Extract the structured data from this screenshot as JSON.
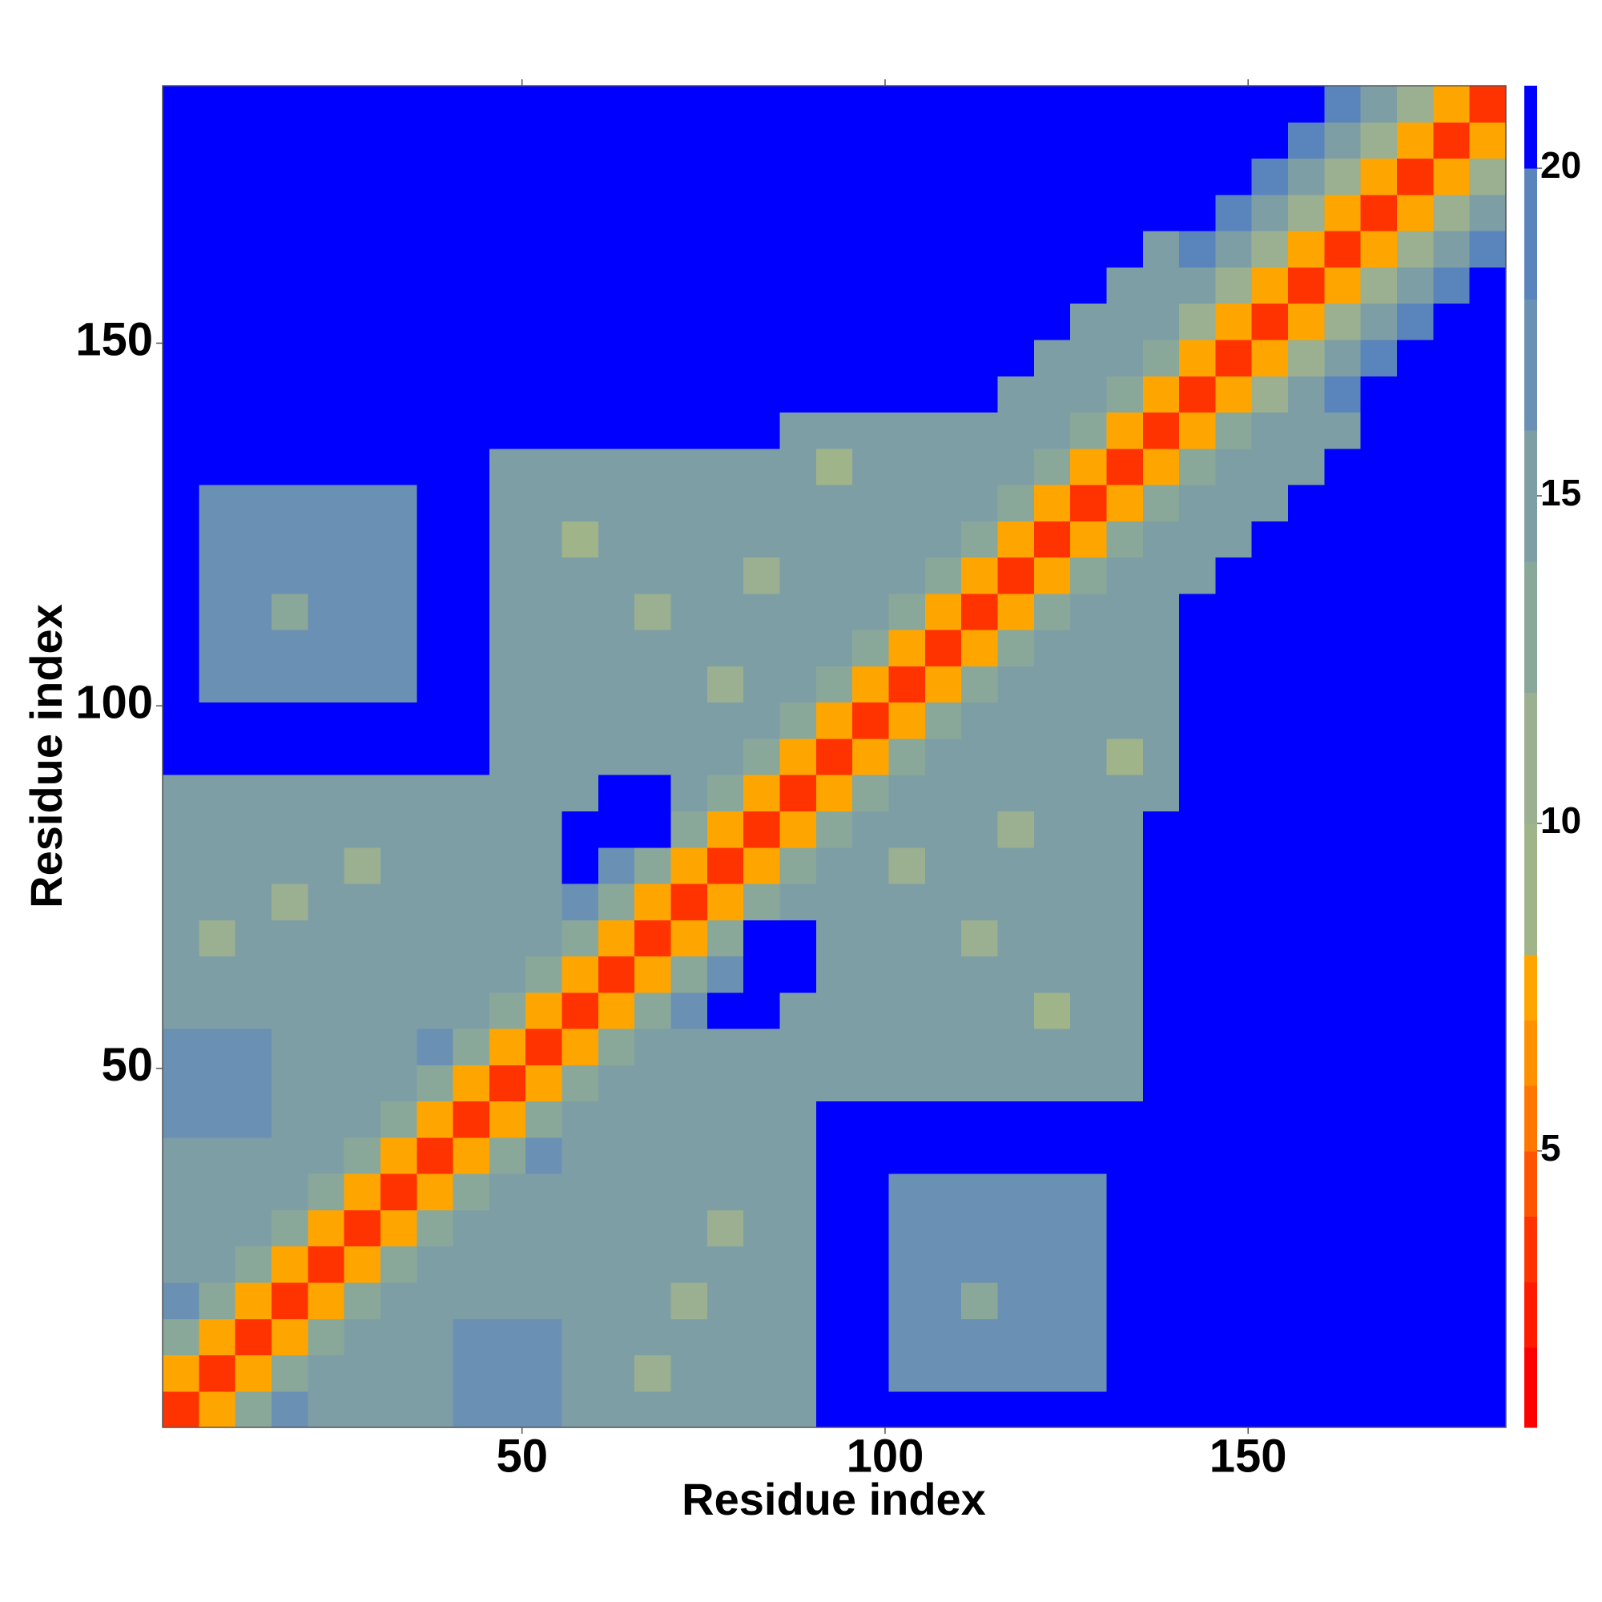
{
  "chart_data": {
    "type": "heatmap",
    "xlabel": "Residue index",
    "ylabel": "Residue index",
    "xlim": [
      0.5,
      185.5
    ],
    "ylim": [
      0.5,
      185.5
    ],
    "xticks": [
      50,
      100,
      150
    ],
    "yticks": [
      50,
      100,
      150
    ],
    "symmetric": true,
    "values": [
      [
        3,
        7,
        12,
        17,
        15,
        15,
        15,
        15,
        16,
        16,
        16,
        14,
        14,
        14,
        14,
        14,
        14,
        14,
        22,
        22,
        22,
        22,
        22,
        22,
        22,
        22,
        22,
        22,
        22,
        22,
        22,
        22,
        22,
        22,
        22,
        22,
        22
      ],
      [
        3,
        7,
        12,
        15,
        15,
        15,
        15,
        16,
        16,
        16,
        14,
        14,
        10,
        14,
        14,
        14,
        14,
        22,
        22,
        17,
        17,
        17,
        17,
        17,
        17,
        22,
        22,
        22,
        22,
        22,
        22,
        22,
        22,
        22,
        22,
        22
      ],
      [
        3,
        7,
        12,
        15,
        15,
        15,
        16,
        16,
        16,
        14,
        14,
        14,
        14,
        14,
        14,
        14,
        22,
        22,
        17,
        17,
        17,
        17,
        17,
        17,
        22,
        22,
        22,
        22,
        22,
        22,
        22,
        22,
        22,
        22,
        22
      ],
      [
        3,
        7,
        12,
        15,
        15,
        15,
        15,
        15,
        14,
        14,
        14,
        10,
        14,
        14,
        14,
        22,
        22,
        17,
        17,
        12,
        17,
        17,
        17,
        22,
        22,
        22,
        22,
        22,
        22,
        22,
        22,
        22,
        22,
        22
      ],
      [
        3,
        7,
        12,
        15,
        15,
        15,
        15,
        14,
        14,
        14,
        14,
        14,
        14,
        14,
        22,
        22,
        17,
        17,
        17,
        17,
        17,
        17,
        22,
        22,
        22,
        22,
        22,
        22,
        22,
        22,
        22,
        22,
        22
      ],
      [
        3,
        7,
        12,
        15,
        15,
        15,
        14,
        14,
        14,
        14,
        11,
        14,
        14,
        22,
        22,
        17,
        17,
        17,
        17,
        17,
        17,
        22,
        22,
        22,
        22,
        22,
        22,
        22,
        22,
        22,
        22,
        22
      ],
      [
        3,
        7,
        12,
        15,
        15,
        14,
        14,
        14,
        14,
        14,
        14,
        14,
        22,
        22,
        17,
        17,
        17,
        17,
        17,
        17,
        22,
        22,
        22,
        22,
        22,
        22,
        22,
        22,
        22,
        22,
        22
      ],
      [
        3,
        7,
        12,
        17,
        14,
        14,
        14,
        14,
        14,
        14,
        14,
        22,
        22,
        22,
        22,
        22,
        22,
        22,
        22,
        22,
        22,
        22,
        22,
        22,
        22,
        22,
        22,
        22,
        22,
        22
      ],
      [
        3,
        7,
        12,
        14,
        14,
        14,
        14,
        14,
        14,
        14,
        22,
        22,
        22,
        22,
        22,
        22,
        22,
        22,
        22,
        22,
        22,
        22,
        22,
        22,
        22,
        22,
        22,
        22,
        22
      ],
      [
        3,
        7,
        12,
        14,
        14,
        14,
        14,
        14,
        14,
        14,
        14,
        14,
        14,
        14,
        14,
        14,
        14,
        14,
        22,
        22,
        22,
        22,
        22,
        22,
        22,
        22,
        22,
        22
      ],
      [
        3,
        7,
        12,
        14,
        14,
        14,
        14,
        14,
        14,
        14,
        14,
        14,
        14,
        14,
        14,
        14,
        14,
        22,
        22,
        22,
        22,
        22,
        22,
        22,
        22,
        22,
        22
      ],
      [
        3,
        7,
        12,
        17,
        22,
        22,
        14,
        14,
        14,
        14,
        14,
        14,
        14,
        9,
        14,
        14,
        22,
        22,
        22,
        22,
        22,
        22,
        22,
        22,
        22,
        22
      ],
      [
        3,
        7,
        12,
        17,
        22,
        22,
        14,
        14,
        14,
        14,
        14,
        14,
        14,
        14,
        14,
        22,
        22,
        22,
        22,
        22,
        22,
        22,
        22,
        22,
        22
      ],
      [
        3,
        7,
        12,
        22,
        22,
        14,
        14,
        14,
        14,
        10,
        14,
        14,
        14,
        14,
        22,
        22,
        22,
        22,
        22,
        22,
        22,
        22,
        22,
        22
      ],
      [
        3,
        7,
        12,
        14,
        14,
        14,
        14,
        14,
        14,
        14,
        14,
        14,
        14,
        22,
        22,
        22,
        22,
        22,
        22,
        22,
        22,
        22,
        22
      ],
      [
        3,
        7,
        12,
        14,
        14,
        10,
        14,
        14,
        14,
        14,
        14,
        14,
        22,
        22,
        22,
        22,
        22,
        22,
        22,
        22,
        22,
        22
      ],
      [
        3,
        7,
        12,
        14,
        14,
        14,
        14,
        11,
        14,
        14,
        14,
        22,
        22,
        22,
        22,
        22,
        22,
        22,
        22,
        22,
        22
      ],
      [
        3,
        7,
        12,
        14,
        14,
        14,
        14,
        14,
        14,
        14,
        15,
        22,
        22,
        22,
        22,
        22,
        22,
        22,
        22,
        22
      ],
      [
        3,
        7,
        12,
        14,
        14,
        14,
        14,
        14,
        8,
        15,
        22,
        22,
        22,
        22,
        22,
        22,
        22,
        22,
        22
      ],
      [
        3,
        7,
        12,
        15,
        15,
        15,
        15,
        15,
        15,
        22,
        22,
        22,
        22,
        22,
        22,
        22,
        22,
        22
      ],
      [
        3,
        7,
        12,
        15,
        15,
        15,
        15,
        15,
        22,
        22,
        22,
        22,
        22,
        22,
        22,
        22,
        22
      ],
      [
        3,
        7,
        12,
        15,
        15,
        15,
        15,
        22,
        22,
        22,
        22,
        22,
        22,
        22,
        22,
        22
      ],
      [
        3,
        7,
        12,
        15,
        15,
        15,
        22,
        22,
        22,
        22,
        22,
        22,
        22,
        22,
        22
      ],
      [
        3,
        7,
        12,
        15,
        15,
        15,
        22,
        22,
        22,
        22,
        22,
        22,
        22,
        22
      ],
      [
        3,
        7,
        12,
        15,
        15,
        15,
        22,
        22,
        22,
        22,
        22,
        22,
        22
      ],
      [
        3,
        7,
        12,
        15,
        15,
        15,
        22,
        22,
        22,
        22,
        22,
        22
      ],
      [
        3,
        7,
        12,
        15,
        15,
        15,
        22,
        22,
        22,
        22,
        22
      ],
      [
        3,
        7,
        12,
        15,
        15,
        15,
        22,
        22,
        22,
        22
      ],
      [
        3,
        7,
        10,
        15,
        18,
        22,
        22,
        22,
        22
      ],
      [
        3,
        7,
        10,
        15,
        18,
        22,
        22,
        22
      ],
      [
        3,
        7,
        10,
        15,
        18,
        22,
        22
      ],
      [
        3,
        7,
        10,
        15,
        18,
        22
      ],
      [
        3,
        7,
        10,
        15,
        18
      ],
      [
        3,
        7,
        10,
        15
      ],
      [
        3,
        7,
        10
      ],
      [
        3,
        7
      ],
      [
        3
      ]
    ],
    "colorbar": {
      "ylim": [
        0.78,
        21.26
      ],
      "yticks": [
        5,
        10,
        15,
        20
      ],
      "levels": [
        0.78,
        2,
        3,
        4,
        5,
        6,
        7,
        8,
        10,
        12,
        14,
        16,
        18,
        20,
        21.26
      ],
      "colors": [
        "#ff0000",
        "#ff1a00",
        "#ff3300",
        "#ff5500",
        "#ff7700",
        "#ff9000",
        "#ffa500",
        "#a0b48a",
        "#9ab090",
        "#8aa89a",
        "#7e9ea6",
        "#6a90b4",
        "#5a84bc",
        "#0000ff"
      ]
    }
  }
}
